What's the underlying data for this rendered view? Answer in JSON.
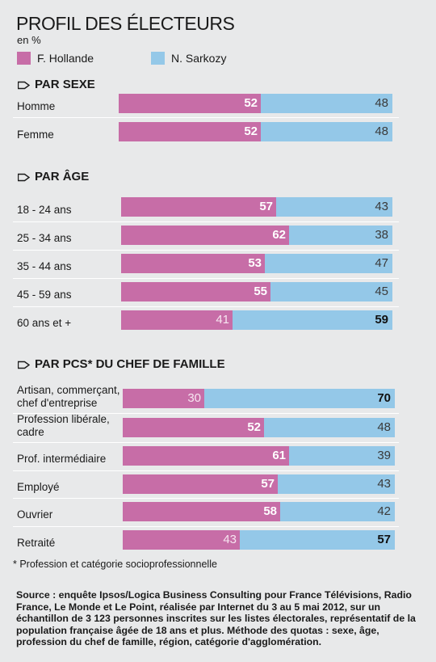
{
  "chart_data": {
    "type": "bar",
    "title": "PROFIL DES ÉLECTEURS",
    "subtitle": "en %",
    "stacked": true,
    "orientation": "horizontal",
    "legend": [
      {
        "name": "F. Hollande",
        "color": "#c76da7"
      },
      {
        "name": "N. Sarkozy",
        "color": "#94c8e8"
      }
    ],
    "colors": {
      "hollande": "#c76da7",
      "sarkozy": "#94c8e8",
      "background": "#e8e9ea"
    },
    "sections": [
      {
        "heading": "PAR SEXE",
        "rows": [
          {
            "label": "Homme",
            "hollande": 52,
            "sarkozy": 48
          },
          {
            "label": "Femme",
            "hollande": 52,
            "sarkozy": 48
          }
        ]
      },
      {
        "heading": "PAR ÂGE",
        "rows": [
          {
            "label": "18 - 24 ans",
            "hollande": 57,
            "sarkozy": 43
          },
          {
            "label": "25 - 34 ans",
            "hollande": 62,
            "sarkozy": 38
          },
          {
            "label": "35 - 44 ans",
            "hollande": 53,
            "sarkozy": 47
          },
          {
            "label": "45 - 59 ans",
            "hollande": 55,
            "sarkozy": 45
          },
          {
            "label": "60 ans et +",
            "hollande": 41,
            "sarkozy": 59
          }
        ]
      },
      {
        "heading": "PAR PCS* DU CHEF DE FAMILLE",
        "rows": [
          {
            "label": "Artisan, commerçant, chef d'entreprise",
            "hollande": 30,
            "sarkozy": 70
          },
          {
            "label": "Profession libérale, cadre",
            "hollande": 52,
            "sarkozy": 48
          },
          {
            "label": "Prof. intermédiaire",
            "hollande": 61,
            "sarkozy": 39
          },
          {
            "label": "Employé",
            "hollande": 57,
            "sarkozy": 43
          },
          {
            "label": "Ouvrier",
            "hollande": 58,
            "sarkozy": 42
          },
          {
            "label": "Retraité",
            "hollande": 43,
            "sarkozy": 57
          }
        ]
      }
    ]
  },
  "footnote": "* Profession et catégorie socioprofessionnelle",
  "source": "Source : enquête Ipsos/Logica Business Consulting pour France Télévisions, Radio France, Le Monde et Le Point, réalisée par Internet du 3 au 5 mai 2012, sur un échantillon de 3 123 personnes inscrites sur les listes électorales, représentatif de la population française âgée de 18 ans et plus. Méthode des quotas : sexe, âge, profession du chef de famille, région, catégorie d'agglomération."
}
